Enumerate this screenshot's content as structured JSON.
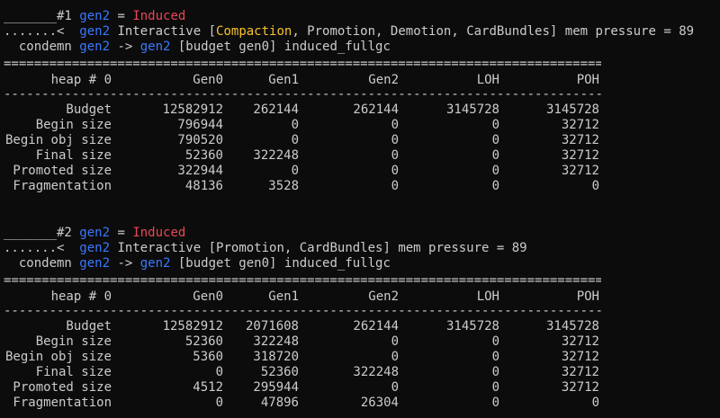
{
  "colors": {
    "background": "#0c0c0c",
    "text": "#cccccc",
    "gen_keyword": "#3b78ff",
    "induced": "#e74856",
    "highlight": "#f9c22b"
  },
  "blocks": [
    {
      "header_prefix": "_______#1 ",
      "gen": "gen2",
      "eq": " = ",
      "reason": "Induced",
      "detail_prefix": ".......<  ",
      "detail_gen": "gen2",
      "detail_mid1": " Interactive [",
      "detail_highlight": "Compaction",
      "detail_rest": ", Promotion, Demotion, CardBundles] mem pressure = 89",
      "condemn_prefix": "  condemn ",
      "condemn_gen1": "gen2",
      "condemn_arrow": " -> ",
      "condemn_gen2": "gen2",
      "condemn_rest": " [budget gen0] induced_fullgc",
      "rule_eq": "==================================================================================================",
      "rule_dash": "--------------------------------------------------------------------------------------------------",
      "columns": [
        "heap # 0",
        "Gen0",
        "Gen1",
        "Gen2",
        "LOH",
        "POH"
      ],
      "rows": [
        [
          "Budget",
          "12582912",
          "262144",
          "262144",
          "3145728",
          "3145728"
        ],
        [
          "Begin size",
          "796944",
          "0",
          "0",
          "0",
          "32712"
        ],
        [
          "Begin obj size",
          "790520",
          "0",
          "0",
          "0",
          "32712"
        ],
        [
          "Final size",
          "52360",
          "322248",
          "0",
          "0",
          "32712"
        ],
        [
          "Promoted size",
          "322944",
          "0",
          "0",
          "0",
          "32712"
        ],
        [
          "Fragmentation",
          "48136",
          "3528",
          "0",
          "0",
          "0"
        ]
      ]
    },
    {
      "header_prefix": "_______#2 ",
      "gen": "gen2",
      "eq": " = ",
      "reason": "Induced",
      "detail_prefix": ".......<  ",
      "detail_gen": "gen2",
      "detail_mid1": " Interactive [",
      "detail_highlight": "",
      "detail_rest": "Promotion, CardBundles] mem pressure = 89",
      "condemn_prefix": "  condemn ",
      "condemn_gen1": "gen2",
      "condemn_arrow": " -> ",
      "condemn_gen2": "gen2",
      "condemn_rest": " [budget gen0] induced_fullgc",
      "rule_eq": "==================================================================================================",
      "rule_dash": "--------------------------------------------------------------------------------------------------",
      "columns": [
        "heap # 0",
        "Gen0",
        "Gen1",
        "Gen2",
        "LOH",
        "POH"
      ],
      "rows": [
        [
          "Budget",
          "12582912",
          "2071608",
          "262144",
          "3145728",
          "3145728"
        ],
        [
          "Begin size",
          "52360",
          "322248",
          "0",
          "0",
          "32712"
        ],
        [
          "Begin obj size",
          "5360",
          "318720",
          "0",
          "0",
          "32712"
        ],
        [
          "Final size",
          "0",
          "52360",
          "322248",
          "0",
          "32712"
        ],
        [
          "Promoted size",
          "4512",
          "295944",
          "0",
          "0",
          "32712"
        ],
        [
          "Fragmentation",
          "0",
          "47896",
          "26304",
          "0",
          "0"
        ]
      ]
    }
  ]
}
